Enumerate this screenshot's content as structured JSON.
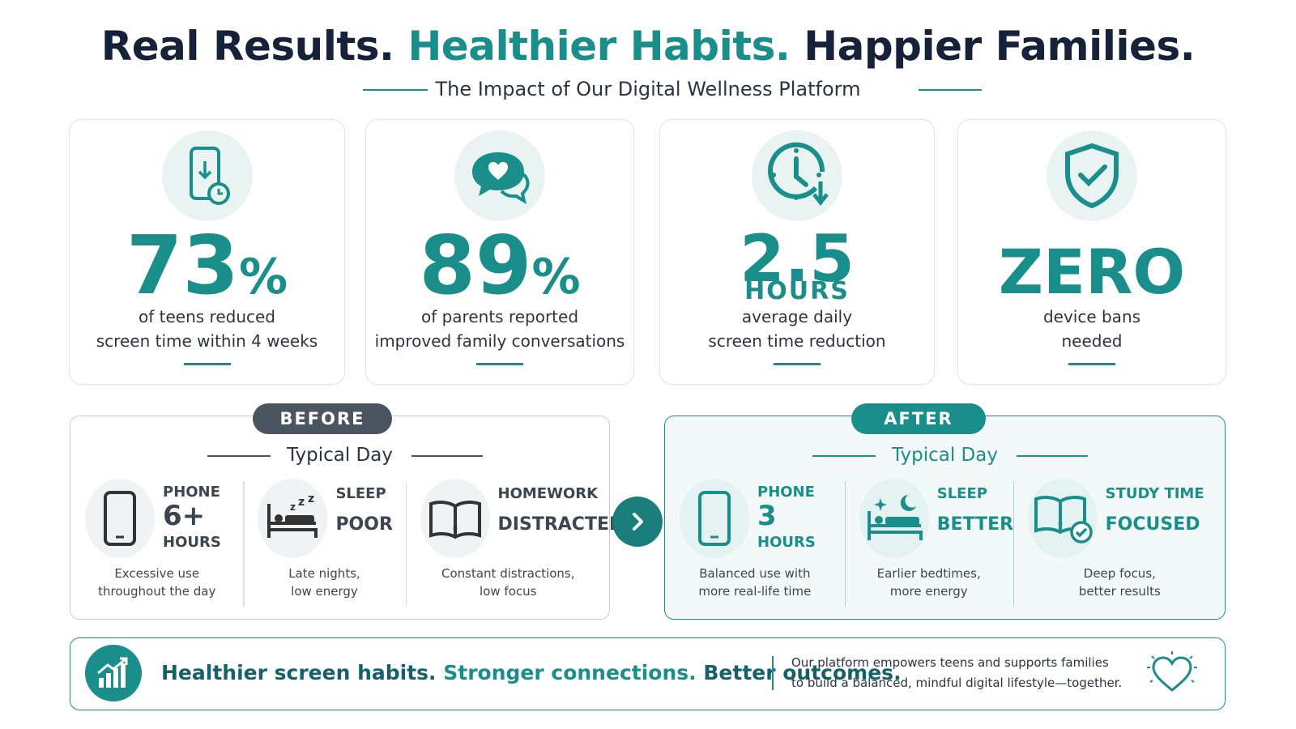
{
  "header": {
    "title_parts": [
      "Real Results.",
      "Healthier Habits.",
      "Happier Families."
    ],
    "subtitle": "The Impact of Our Digital Wellness Platform"
  },
  "stats": [
    {
      "value": "73",
      "unit": "%",
      "caption": [
        "of teens reduced",
        "screen time within 4 weeks"
      ]
    },
    {
      "value": "89",
      "unit": "%",
      "caption": [
        "of parents reported",
        "improved family conversations"
      ]
    },
    {
      "value": "2.5",
      "sub": "HOURS",
      "caption": [
        "average daily",
        "screen time reduction"
      ]
    },
    {
      "value": "ZERO",
      "caption": [
        "device bans",
        "needed"
      ]
    }
  ],
  "before": {
    "badge": "BEFORE",
    "title": "Typical Day",
    "items": [
      {
        "label": "PHONE",
        "value": "6+",
        "unit": "HOURS",
        "desc": [
          "Excessive use",
          "throughout the day"
        ]
      },
      {
        "label": "SLEEP",
        "value": "POOR",
        "desc": [
          "Late nights,",
          "low energy"
        ]
      },
      {
        "label": "HOMEWORK",
        "value": "DISTRACTED",
        "desc": [
          "Constant distractions,",
          "low focus"
        ]
      }
    ]
  },
  "after": {
    "badge": "AFTER",
    "title": "Typical Day",
    "items": [
      {
        "label": "PHONE",
        "value": "3",
        "unit": "HOURS",
        "desc": [
          "Balanced use with",
          "more real-life time"
        ]
      },
      {
        "label": "SLEEP",
        "value": "BETTER",
        "desc": [
          "Earlier bedtimes,",
          "more energy"
        ]
      },
      {
        "label": "STUDY TIME",
        "value": "FOCUSED",
        "desc": [
          "Deep focus,",
          "better results"
        ]
      }
    ]
  },
  "footer": {
    "headline_parts": [
      "Healthier screen habits.",
      "Stronger connections.",
      "Better outcomes."
    ],
    "text": [
      "Our platform empowers teens and supports families",
      "to build a balanced, mindful digital lifestyle—together."
    ]
  }
}
